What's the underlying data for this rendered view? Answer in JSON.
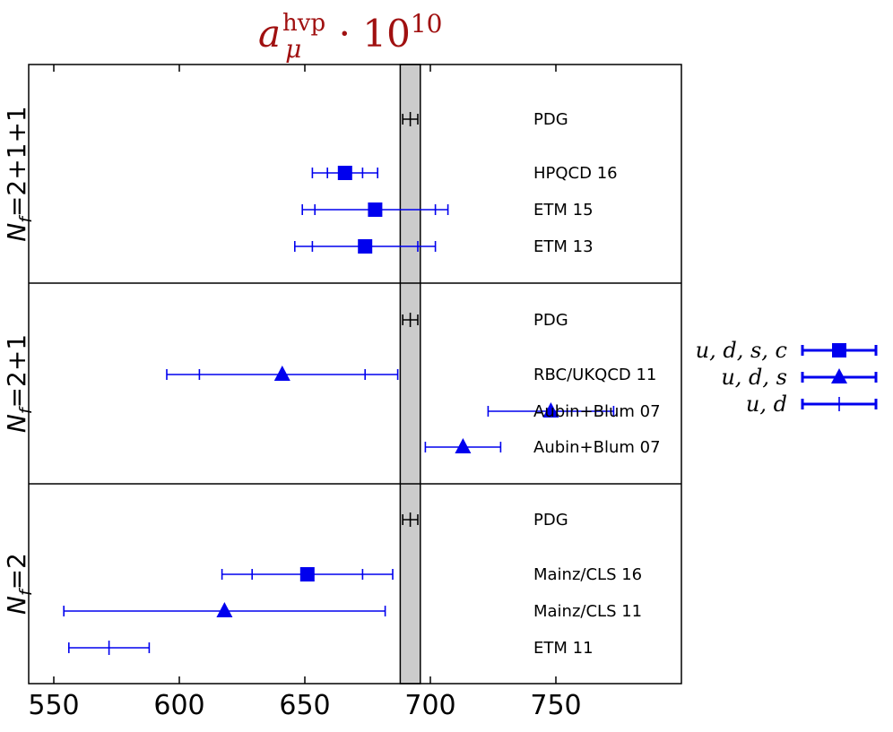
{
  "chart_data": {
    "type": "forest",
    "title": {
      "base": "a",
      "sup": "hvp",
      "sub": "μ",
      "mult": "· 10",
      "exp": "10"
    },
    "xlim": [
      540,
      800
    ],
    "xticks": [
      550,
      600,
      650,
      700,
      750
    ],
    "band": [
      688,
      696
    ],
    "colors": {
      "lattice": "#0000ee",
      "pdg": "#000000",
      "band": "#cccccc",
      "title": "#a01010"
    },
    "panels": [
      {
        "label_base": "N",
        "label_sub": "f",
        "label_rest": "=2+1+1",
        "rows": [
          {
            "label": "PDG",
            "value": 692,
            "inner": [
              692,
              692
            ],
            "outer": [
              689,
              695
            ],
            "marker": "tick",
            "color": "pdg"
          },
          {
            "label": "HPQCD 16",
            "value": 666,
            "inner": [
              659,
              673
            ],
            "outer": [
              653,
              679
            ],
            "marker": "square",
            "color": "lattice"
          },
          {
            "label": "ETM 15",
            "value": 678,
            "inner": [
              654,
              702
            ],
            "outer": [
              649,
              707
            ],
            "marker": "square",
            "color": "lattice"
          },
          {
            "label": "ETM 13",
            "value": 674,
            "inner": [
              653,
              695
            ],
            "outer": [
              646,
              702
            ],
            "marker": "square",
            "color": "lattice"
          }
        ]
      },
      {
        "label_base": "N",
        "label_sub": "f",
        "label_rest": "=2+1",
        "rows": [
          {
            "label": "PDG",
            "value": 692,
            "inner": [
              692,
              692
            ],
            "outer": [
              689,
              695
            ],
            "marker": "tick",
            "color": "pdg"
          },
          {
            "label": "RBC/UKQCD 11",
            "value": 641,
            "inner": [
              608,
              674
            ],
            "outer": [
              595,
              687
            ],
            "marker": "triangle",
            "color": "lattice"
          },
          {
            "label": "Aubin+Blum 07",
            "value": 748,
            "inner": [
              748,
              748
            ],
            "outer": [
              723,
              773
            ],
            "marker": "triangle",
            "color": "lattice"
          },
          {
            "label": "Aubin+Blum 07",
            "value": 713,
            "inner": [
              713,
              713
            ],
            "outer": [
              698,
              728
            ],
            "marker": "triangle",
            "color": "lattice"
          }
        ]
      },
      {
        "label_base": "N",
        "label_sub": "f",
        "label_rest": "=2",
        "rows": [
          {
            "label": "PDG",
            "value": 692,
            "inner": [
              692,
              692
            ],
            "outer": [
              689,
              695
            ],
            "marker": "tick",
            "color": "pdg"
          },
          {
            "label": "Mainz/CLS 16",
            "value": 651,
            "inner": [
              629,
              673
            ],
            "outer": [
              617,
              685
            ],
            "marker": "square",
            "color": "lattice"
          },
          {
            "label": "Mainz/CLS 11",
            "value": 618,
            "inner": [
              618,
              618
            ],
            "outer": [
              554,
              682
            ],
            "marker": "triangle",
            "color": "lattice"
          },
          {
            "label": "ETM 11",
            "value": 572,
            "inner": [
              572,
              572
            ],
            "outer": [
              556,
              588
            ],
            "marker": "tick",
            "color": "lattice"
          }
        ]
      }
    ],
    "legend": [
      {
        "label": "u, d, s, c",
        "marker": "square"
      },
      {
        "label": "u, d, s",
        "marker": "triangle"
      },
      {
        "label": "u, d",
        "marker": "tick"
      }
    ]
  }
}
